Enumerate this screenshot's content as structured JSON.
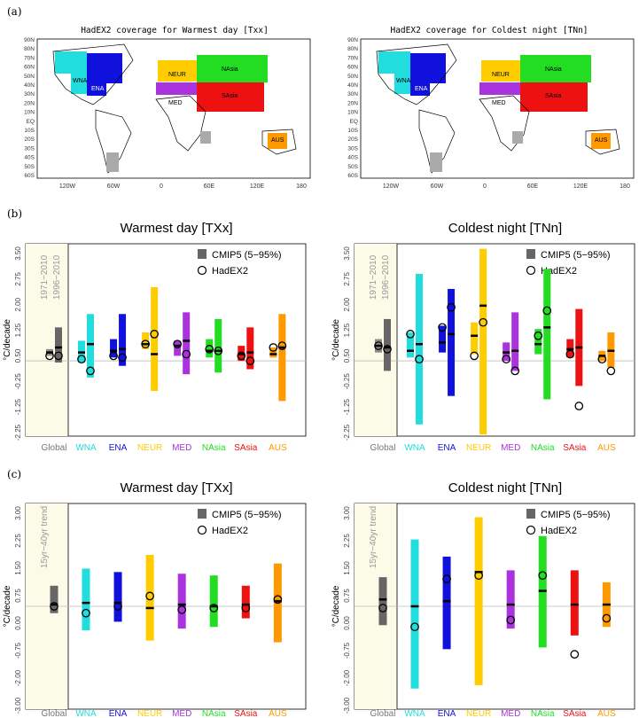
{
  "figure": {
    "panel_labels": [
      "(a)",
      "(b)",
      "(c)"
    ],
    "regions": [
      "WNA",
      "ENA",
      "NEUR",
      "MED",
      "NAsia",
      "SAsia",
      "AUS"
    ],
    "region_colors": {
      "Global": "#666666",
      "WNA": "#22dddd",
      "ENA": "#1111dd",
      "NEUR": "#ffcc00",
      "MED": "#aa33dd",
      "NAsia": "#22dd22",
      "SAsia": "#ee1111",
      "AUS": "#ff9900"
    },
    "maps": [
      {
        "title": "HadEX2 coverage for Warmest day [Txx]",
        "lat_labels": [
          "90N",
          "80N",
          "70N",
          "60N",
          "50N",
          "40N",
          "30N",
          "20N",
          "10N",
          "EQ",
          "10S",
          "20S",
          "30S",
          "40S",
          "50S",
          "60S"
        ],
        "lon_labels": [
          "120W",
          "60W",
          "0",
          "60E",
          "120E",
          "180"
        ]
      },
      {
        "title": "HadEX2 coverage for Coldest night [TNn]",
        "lat_labels": [
          "90N",
          "80N",
          "70N",
          "60N",
          "50N",
          "40N",
          "30N",
          "20N",
          "10N",
          "EQ",
          "10S",
          "20S",
          "30S",
          "40S",
          "50S",
          "60S"
        ],
        "lon_labels": [
          "120W",
          "60W",
          "0",
          "60E",
          "120E",
          "180"
        ]
      }
    ]
  },
  "chart_data": [
    {
      "type": "bar",
      "panel": "b-left",
      "title": "Warmest day [TXx]",
      "ylabel": "°C/decade",
      "yticks": [
        "-2.25",
        "-1.25",
        "-0.25",
        "0.50",
        "1.25",
        "2.00",
        "2.75",
        "3.50"
      ],
      "ylim": [
        -2.25,
        3.5
      ],
      "categories": [
        "Global",
        "WNA",
        "ENA",
        "NEUR",
        "MED",
        "NAsia",
        "SAsia",
        "AUS"
      ],
      "shade_labels": [
        "1971−2010",
        "1996−2010"
      ],
      "legend": {
        "model": "CMIP5 (5−95%)",
        "obs": "HadEX2"
      },
      "series": [
        {
          "name": "1971−2010",
          "low": [
            0.15,
            -0.05,
            0.1,
            0.35,
            0.15,
            0.1,
            0.0,
            0.1
          ],
          "high": [
            0.35,
            0.6,
            0.65,
            0.85,
            0.6,
            0.65,
            0.45,
            0.4
          ],
          "median": [
            0.25,
            0.25,
            0.3,
            0.5,
            0.45,
            0.3,
            0.2,
            0.2
          ],
          "obs": [
            0.15,
            0.05,
            0.15,
            0.5,
            0.5,
            0.35,
            0.15,
            0.4
          ]
        },
        {
          "name": "1996−2010",
          "low": [
            -0.05,
            -0.5,
            -0.15,
            -0.9,
            -0.4,
            -0.35,
            -0.25,
            -1.2
          ],
          "high": [
            1.0,
            1.4,
            1.4,
            2.2,
            1.45,
            1.25,
            1.0,
            1.4
          ],
          "median": [
            0.4,
            0.5,
            0.35,
            0.2,
            0.6,
            0.3,
            0.25,
            0.4
          ],
          "obs": [
            0.15,
            -0.3,
            0.1,
            0.8,
            0.2,
            0.3,
            0.0,
            0.45
          ]
        }
      ]
    },
    {
      "type": "bar",
      "panel": "b-right",
      "title": "Coldest night [TNn]",
      "ylabel": "°C/decade",
      "yticks": [
        "-2.25",
        "-1.25",
        "-0.25",
        "0.50",
        "1.25",
        "2.00",
        "2.75",
        "3.50"
      ],
      "ylim": [
        -2.25,
        3.5
      ],
      "categories": [
        "Global",
        "WNA",
        "ENA",
        "NEUR",
        "MED",
        "NAsia",
        "SAsia",
        "AUS"
      ],
      "shade_labels": [
        "1971−2010",
        "1996−2010"
      ],
      "legend": {
        "model": "CMIP5 (5−95%)",
        "obs": "HadEX2"
      },
      "series": [
        {
          "name": "1971−2010",
          "low": [
            0.25,
            0.1,
            0.25,
            0.2,
            0.0,
            0.2,
            0.1,
            0.0
          ],
          "high": [
            0.65,
            0.85,
            1.05,
            1.15,
            0.55,
            0.95,
            0.65,
            0.3
          ],
          "median": [
            0.45,
            0.3,
            0.55,
            0.75,
            0.25,
            0.5,
            0.35,
            0.15
          ],
          "obs": [
            0.45,
            0.8,
            1.0,
            0.15,
            0.05,
            0.75,
            0.2,
            0.05
          ]
        },
        {
          "name": "1996−2010",
          "low": [
            -0.3,
            -1.9,
            -1.05,
            -2.2,
            -0.3,
            -1.15,
            -0.75,
            -0.2
          ],
          "high": [
            1.25,
            2.6,
            2.15,
            3.35,
            1.45,
            2.75,
            1.55,
            0.85
          ],
          "median": [
            0.4,
            0.5,
            0.8,
            1.65,
            0.3,
            1.0,
            0.4,
            0.3
          ],
          "obs": [
            0.35,
            0.05,
            1.6,
            1.15,
            -0.3,
            1.5,
            -1.35,
            -0.3
          ]
        }
      ]
    },
    {
      "type": "bar",
      "panel": "c-left",
      "title": "Warmest day [TXx]",
      "ylabel": "°C/decade",
      "yticks": [
        "-3.00",
        "-2.00",
        "-0.75",
        "0.00",
        "0.75",
        "1.50",
        "2.25",
        "3.00"
      ],
      "ylim": [
        -3.0,
        3.0
      ],
      "categories": [
        "Global",
        "WNA",
        "ENA",
        "NEUR",
        "MED",
        "NAsia",
        "SAsia",
        "AUS"
      ],
      "shade_labels": [
        "15yr−40yr trend"
      ],
      "legend": {
        "model": "CMIP5 (5−95%)",
        "obs": "HadEX2"
      },
      "series": [
        {
          "name": "15yr−40yr trend",
          "low": [
            -0.2,
            -0.7,
            -0.45,
            -1.0,
            -0.65,
            -0.6,
            -0.35,
            -1.05
          ],
          "high": [
            0.6,
            1.1,
            1.0,
            1.5,
            0.95,
            0.9,
            0.6,
            1.25
          ],
          "median": [
            0.05,
            0.1,
            0.1,
            -0.05,
            0.05,
            0.0,
            0.05,
            0.15
          ],
          "obs": [
            0.0,
            -0.2,
            0.0,
            0.3,
            -0.1,
            -0.05,
            -0.05,
            0.2
          ]
        }
      ]
    },
    {
      "type": "bar",
      "panel": "c-right",
      "title": "Coldest night [TNn]",
      "ylabel": "°C/decade",
      "yticks": [
        "-3.00",
        "-2.00",
        "-0.75",
        "0.00",
        "0.75",
        "1.50",
        "2.25",
        "3.00"
      ],
      "ylim": [
        -3.0,
        3.0
      ],
      "categories": [
        "Global",
        "WNA",
        "ENA",
        "NEUR",
        "MED",
        "NAsia",
        "SAsia",
        "AUS"
      ],
      "shade_labels": [
        "15yr−40yr trend"
      ],
      "legend": {
        "model": "CMIP5 (5−95%)",
        "obs": "HadEX2"
      },
      "series": [
        {
          "name": "15yr−40yr trend",
          "low": [
            -0.55,
            -2.4,
            -1.25,
            -2.3,
            -0.65,
            -1.2,
            -0.85,
            -0.6
          ],
          "high": [
            0.85,
            1.95,
            1.45,
            2.6,
            1.05,
            2.05,
            1.05,
            0.7
          ],
          "median": [
            0.2,
            0.0,
            0.15,
            1.0,
            0.05,
            0.45,
            0.05,
            0.05
          ],
          "obs": [
            -0.05,
            -0.6,
            0.8,
            0.9,
            -0.4,
            0.9,
            -1.4,
            -0.35
          ]
        }
      ]
    }
  ]
}
